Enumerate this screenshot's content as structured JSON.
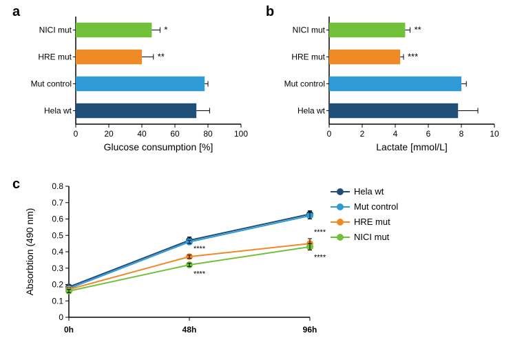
{
  "colors": {
    "hela_wt": "#1f4e79",
    "mut_ctrl": "#2e9bd6",
    "hre_mut": "#f08a24",
    "nici_mut": "#70c03a",
    "axis": "#000000",
    "tick": "#000000",
    "text": "#000000",
    "bg": "#ffffff"
  },
  "panel_a": {
    "label": "a",
    "type": "bar-horizontal",
    "xlabel": "Glucose consumption [%]",
    "xlim": [
      0,
      100
    ],
    "xtick_step": 20,
    "bar_height": 0.55,
    "categories": [
      "NICI mut",
      "HRE mut",
      "Mut control",
      "Hela wt"
    ],
    "values": [
      46,
      40,
      78,
      73
    ],
    "errors": [
      5,
      7,
      2,
      8
    ],
    "sig": [
      "*",
      "**",
      "",
      ""
    ],
    "color_keys": [
      "nici_mut",
      "hre_mut",
      "mut_ctrl",
      "hela_wt"
    ],
    "fontsize_label": 14,
    "fontsize_tick": 12
  },
  "panel_b": {
    "label": "b",
    "type": "bar-horizontal",
    "xlabel": "Lactate [mmol/L]",
    "xlim": [
      0,
      10
    ],
    "xtick_step": 2,
    "bar_height": 0.55,
    "categories": [
      "NICI mut",
      "HRE mut",
      "Mut control",
      "Hela wt"
    ],
    "values": [
      4.6,
      4.3,
      8.0,
      7.8
    ],
    "errors": [
      0.3,
      0.2,
      0.3,
      1.2
    ],
    "sig": [
      "**",
      "***",
      "",
      ""
    ],
    "color_keys": [
      "nici_mut",
      "hre_mut",
      "mut_ctrl",
      "hela_wt"
    ],
    "fontsize_label": 14,
    "fontsize_tick": 12
  },
  "panel_c": {
    "label": "c",
    "type": "line",
    "xlabel": "",
    "ylabel": "Absorbtion (490 nm)",
    "xticks": [
      "0h",
      "48h",
      "96h"
    ],
    "ylim": [
      0,
      0.8
    ],
    "ytick_step": 0.1,
    "series": [
      {
        "name": "Hela wt",
        "color_key": "hela_wt",
        "y": [
          0.185,
          0.47,
          0.63
        ],
        "err": [
          0.01,
          0.02,
          0.02
        ],
        "sig": [
          "",
          "",
          ""
        ]
      },
      {
        "name": "Mut control",
        "color_key": "mut_ctrl",
        "y": [
          0.175,
          0.46,
          0.62
        ],
        "err": [
          0.01,
          0.01,
          0.02
        ],
        "sig": [
          "",
          "",
          ""
        ]
      },
      {
        "name": "HRE mut",
        "color_key": "hre_mut",
        "y": [
          0.17,
          0.37,
          0.45
        ],
        "err": [
          0.01,
          0.01,
          0.03
        ],
        "sig": [
          "",
          "****",
          "****"
        ]
      },
      {
        "name": "NICI mut",
        "color_key": "nici_mut",
        "y": [
          0.16,
          0.32,
          0.43
        ],
        "err": [
          0.01,
          0.01,
          0.02
        ],
        "sig": [
          "",
          "****",
          "****"
        ]
      }
    ],
    "marker_size": 5,
    "line_width": 2,
    "legend_title": "",
    "legend_pos": "right",
    "fontsize_label": 14,
    "fontsize_tick": 12
  }
}
